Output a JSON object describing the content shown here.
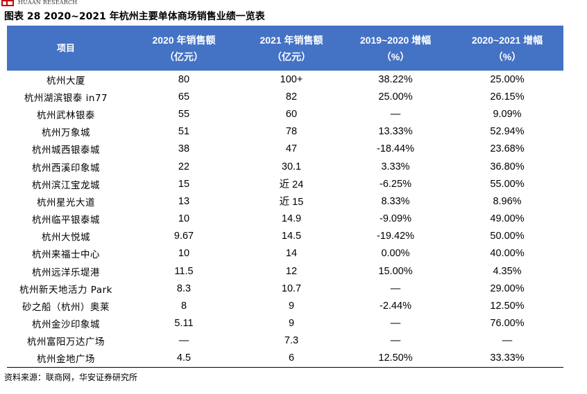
{
  "header": {
    "logo_text": "HUAAN RESEARCH",
    "title": "图表 28 2020~2021 年杭州主要单体商场销售业绩一览表"
  },
  "table": {
    "columns": [
      {
        "line1": "项目",
        "line2": ""
      },
      {
        "line1": "2020 年销售额",
        "line2": "（亿元）"
      },
      {
        "line1": "2021 年销售额",
        "line2": "（亿元）"
      },
      {
        "line1": "2019~2020 增幅",
        "line2": "（%）"
      },
      {
        "line1": "2020~2021 增幅",
        "line2": "（%）"
      }
    ],
    "rows": [
      [
        "杭州大厦",
        "80",
        "100+",
        "38.22%",
        "25.00%"
      ],
      [
        "杭州湖滨银泰 in77",
        "65",
        "82",
        "25.00%",
        "26.15%"
      ],
      [
        "杭州武林银泰",
        "55",
        "60",
        "—",
        "9.09%"
      ],
      [
        "杭州万象城",
        "51",
        "78",
        "13.33%",
        "52.94%"
      ],
      [
        "杭州城西银泰城",
        "38",
        "47",
        "-18.44%",
        "23.68%"
      ],
      [
        "杭州西溪印象城",
        "22",
        "30.1",
        "3.33%",
        "36.80%"
      ],
      [
        "杭州滨江宝龙城",
        "15",
        "近 24",
        "-6.25%",
        "55.00%"
      ],
      [
        "杭州星光大道",
        "13",
        "近 15",
        "8.33%",
        "8.96%"
      ],
      [
        "杭州临平银泰城",
        "10",
        "14.9",
        "-9.09%",
        "49.00%"
      ],
      [
        "杭州大悦城",
        "9.67",
        "14.5",
        "-19.42%",
        "50.00%"
      ],
      [
        "杭州来福士中心",
        "10",
        "14",
        "0.00%",
        "40.00%"
      ],
      [
        "杭州远洋乐堤港",
        "11.5",
        "12",
        "15.00%",
        "4.35%"
      ],
      [
        "杭州新天地活力 Park",
        "8.3",
        "10.7",
        "—",
        "29.00%"
      ],
      [
        "砂之船（杭州）奥莱",
        "8",
        "9",
        "-2.44%",
        "12.50%"
      ],
      [
        "杭州金沙印象城",
        "5.11",
        "9",
        "—",
        "76.00%"
      ],
      [
        "杭州富阳万达广场",
        "—",
        "7.3",
        "—",
        "—"
      ],
      [
        "杭州金地广场",
        "4.5",
        "6",
        "12.50%",
        "33.33%"
      ]
    ]
  },
  "footer": {
    "source": "资料来源：联商网，华安证券研究所"
  },
  "colors": {
    "header_bg": "#4472c4",
    "header_text": "#ffffff",
    "logo_red": "#c00000"
  }
}
